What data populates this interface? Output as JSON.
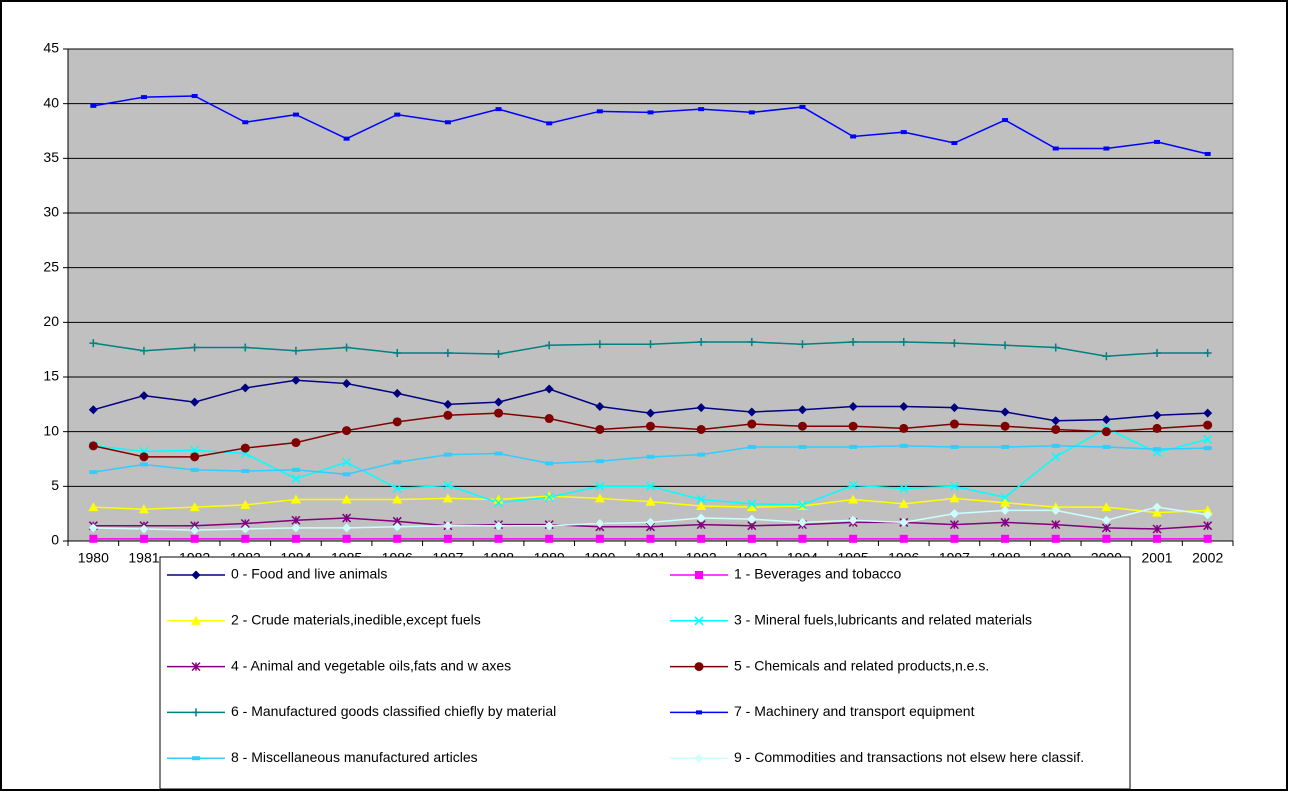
{
  "chart_data": {
    "type": "line",
    "categories": [
      "1980",
      "1981",
      "1982",
      "1983",
      "1984",
      "1985",
      "1986",
      "1987",
      "1988",
      "1989",
      "1990",
      "1991",
      "1992",
      "1993",
      "1994",
      "1995",
      "1996",
      "1997",
      "1998",
      "1999",
      "2000",
      "2001",
      "2002"
    ],
    "ylim": [
      0,
      45
    ],
    "yticks": [
      0,
      5,
      10,
      15,
      20,
      25,
      30,
      35,
      40,
      45
    ],
    "grid": true,
    "plot_background": "#c0c0c0",
    "series": [
      {
        "name": "0 - Food and live animals",
        "color": "#000080",
        "marker": "diamond",
        "values": [
          12.0,
          13.3,
          12.7,
          14.0,
          14.7,
          14.4,
          13.5,
          12.5,
          12.7,
          13.9,
          12.3,
          11.7,
          12.2,
          11.8,
          12.0,
          12.3,
          12.3,
          12.2,
          11.8,
          11.0,
          11.1,
          11.5,
          11.7
        ]
      },
      {
        "name": "1 - Beverages and tobacco",
        "color": "#ff00ff",
        "marker": "square",
        "values": [
          0.2,
          0.2,
          0.2,
          0.2,
          0.2,
          0.2,
          0.2,
          0.2,
          0.2,
          0.2,
          0.2,
          0.2,
          0.2,
          0.2,
          0.2,
          0.2,
          0.2,
          0.2,
          0.2,
          0.2,
          0.2,
          0.2,
          0.2
        ]
      },
      {
        "name": "2 - Crude materials,inedible,except fuels",
        "color": "#ffff00",
        "marker": "triangle",
        "values": [
          3.1,
          2.9,
          3.1,
          3.3,
          3.8,
          3.8,
          3.8,
          3.9,
          3.8,
          4.1,
          3.9,
          3.6,
          3.2,
          3.1,
          3.2,
          3.8,
          3.4,
          3.9,
          3.5,
          3.1,
          3.1,
          2.6,
          2.8
        ]
      },
      {
        "name": "3 - Mineral fuels,lubricants and related materials",
        "color": "#00ffff",
        "marker": "x",
        "values": [
          8.7,
          8.2,
          8.3,
          8.0,
          5.7,
          7.2,
          4.8,
          5.1,
          3.5,
          4.0,
          5.0,
          5.0,
          3.8,
          3.4,
          3.3,
          5.1,
          4.8,
          5.0,
          4.0,
          7.7,
          10.3,
          8.1,
          9.3
        ]
      },
      {
        "name": "4 - Animal and vegetable oils,fats and w axes",
        "color": "#800080",
        "marker": "star",
        "values": [
          1.4,
          1.4,
          1.4,
          1.6,
          1.9,
          2.1,
          1.8,
          1.4,
          1.5,
          1.5,
          1.3,
          1.3,
          1.5,
          1.4,
          1.5,
          1.7,
          1.7,
          1.5,
          1.7,
          1.5,
          1.2,
          1.1,
          1.4
        ]
      },
      {
        "name": "5 - Chemicals and related products,n.e.s.",
        "color": "#800000",
        "marker": "circle",
        "values": [
          8.7,
          7.7,
          7.7,
          8.5,
          9.0,
          10.1,
          10.9,
          11.5,
          11.7,
          11.2,
          10.2,
          10.5,
          10.2,
          10.7,
          10.5,
          10.5,
          10.3,
          10.7,
          10.5,
          10.2,
          10.0,
          10.3,
          10.6
        ]
      },
      {
        "name": "6 - Manufactured goods classified chiefly by material",
        "color": "#008080",
        "marker": "plus",
        "values": [
          18.1,
          17.4,
          17.7,
          17.7,
          17.4,
          17.7,
          17.2,
          17.2,
          17.1,
          17.9,
          18.0,
          18.0,
          18.2,
          18.2,
          18.0,
          18.2,
          18.2,
          18.1,
          17.9,
          17.7,
          16.9,
          17.2,
          17.2
        ]
      },
      {
        "name": "7 - Machinery and transport equipment",
        "color": "#0000ff",
        "marker": "dash",
        "values": [
          39.8,
          40.6,
          40.7,
          38.3,
          39.0,
          36.8,
          39.0,
          38.3,
          39.5,
          38.2,
          39.3,
          39.2,
          39.5,
          39.2,
          39.7,
          37.0,
          37.4,
          36.4,
          38.5,
          35.9,
          35.9,
          36.5,
          35.4
        ]
      },
      {
        "name": "8 - Miscellaneous manufactured articles",
        "color": "#33ccff",
        "marker": "bar",
        "values": [
          6.3,
          7.0,
          6.5,
          6.4,
          6.5,
          6.1,
          7.2,
          7.9,
          8.0,
          7.1,
          7.3,
          7.7,
          7.9,
          8.6,
          8.6,
          8.6,
          8.7,
          8.6,
          8.6,
          8.7,
          8.6,
          8.4,
          8.5
        ]
      },
      {
        "name": "9 - Commodities and transactions not elsew here classif.",
        "color": "#ccffff",
        "marker": "diamond",
        "values": [
          1.2,
          1.1,
          1.0,
          1.1,
          1.2,
          1.2,
          1.3,
          1.4,
          1.4,
          1.4,
          1.6,
          1.7,
          2.1,
          2.0,
          1.7,
          1.9,
          1.7,
          2.5,
          2.8,
          2.8,
          1.9,
          3.1,
          2.4
        ]
      }
    ]
  }
}
